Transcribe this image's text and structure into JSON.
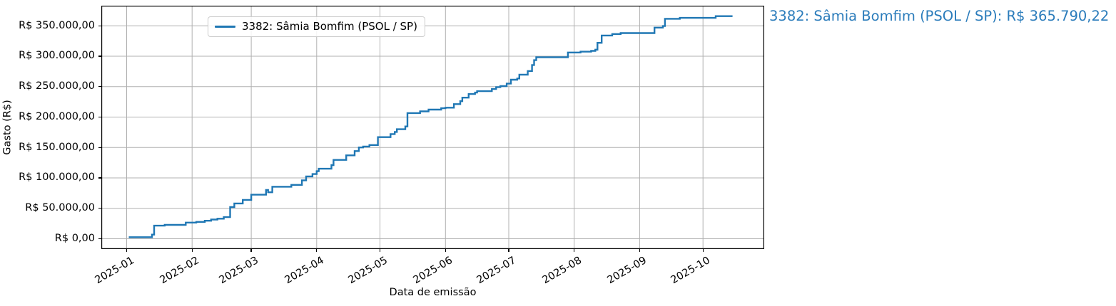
{
  "annotation": {
    "text": "3382: Sâmia Bomfim (PSOL / SP): R$ 365.790,22",
    "color": "#2b7cbb"
  },
  "chart_data": {
    "type": "line",
    "step": "post",
    "xlabel": "Data de emissão",
    "ylabel": "Gasto (R$)",
    "grid": true,
    "grid_color": "#b0b0b0",
    "spine_color": "#000000",
    "legend_position": "upper left",
    "xlim": [
      "2024-12-20",
      "2025-10-30"
    ],
    "ylim": [
      -17000,
      383000
    ],
    "x_ticks": [
      {
        "date": "2025-01-01",
        "label": "2025-01"
      },
      {
        "date": "2025-02-01",
        "label": "2025-02"
      },
      {
        "date": "2025-03-01",
        "label": "2025-03"
      },
      {
        "date": "2025-04-01",
        "label": "2025-04"
      },
      {
        "date": "2025-05-01",
        "label": "2025-05"
      },
      {
        "date": "2025-06-01",
        "label": "2025-06"
      },
      {
        "date": "2025-07-01",
        "label": "2025-07"
      },
      {
        "date": "2025-08-01",
        "label": "2025-08"
      },
      {
        "date": "2025-09-01",
        "label": "2025-09"
      },
      {
        "date": "2025-10-01",
        "label": "2025-10"
      }
    ],
    "y_ticks": [
      {
        "value": 0,
        "label": "R$ 0,00"
      },
      {
        "value": 50000,
        "label": "R$ 50.000,00"
      },
      {
        "value": 100000,
        "label": "R$ 100.000,00"
      },
      {
        "value": 150000,
        "label": "R$ 150.000,00"
      },
      {
        "value": 200000,
        "label": "R$ 200.000,00"
      },
      {
        "value": 250000,
        "label": "R$ 250.000,00"
      },
      {
        "value": 300000,
        "label": "R$ 300.000,00"
      },
      {
        "value": 350000,
        "label": "R$ 350.000,00"
      }
    ],
    "series": [
      {
        "name": "3382: Sâmia Bomfim (PSOL / SP)",
        "color": "#1f77b4",
        "final_value_label": "R$ 365.790,22",
        "points": [
          [
            "2025-01-02",
            2500
          ],
          [
            "2025-01-13",
            6700
          ],
          [
            "2025-01-14",
            21500
          ],
          [
            "2025-01-19",
            22800
          ],
          [
            "2025-01-29",
            26500
          ],
          [
            "2025-02-03",
            27700
          ],
          [
            "2025-02-07",
            29500
          ],
          [
            "2025-02-10",
            31500
          ],
          [
            "2025-02-13",
            33000
          ],
          [
            "2025-02-16",
            35500
          ],
          [
            "2025-02-19",
            52000
          ],
          [
            "2025-02-21",
            58000
          ],
          [
            "2025-02-25",
            63800
          ],
          [
            "2025-03-01",
            72300
          ],
          [
            "2025-03-08",
            80200
          ],
          [
            "2025-03-09",
            76300
          ],
          [
            "2025-03-11",
            85400
          ],
          [
            "2025-03-20",
            88500
          ],
          [
            "2025-03-25",
            96000
          ],
          [
            "2025-03-27",
            102400
          ],
          [
            "2025-03-30",
            106300
          ],
          [
            "2025-04-01",
            111000
          ],
          [
            "2025-04-02",
            115000
          ],
          [
            "2025-04-08",
            121000
          ],
          [
            "2025-04-09",
            129500
          ],
          [
            "2025-04-15",
            137000
          ],
          [
            "2025-04-19",
            144000
          ],
          [
            "2025-04-21",
            150000
          ],
          [
            "2025-04-23",
            151500
          ],
          [
            "2025-04-26",
            154000
          ],
          [
            "2025-04-30",
            167000
          ],
          [
            "2025-05-06",
            172000
          ],
          [
            "2025-05-08",
            175500
          ],
          [
            "2025-05-09",
            180000
          ],
          [
            "2025-05-13",
            184500
          ],
          [
            "2025-05-14",
            206500
          ],
          [
            "2025-05-20",
            209300
          ],
          [
            "2025-05-24",
            212200
          ],
          [
            "2025-05-30",
            214500
          ],
          [
            "2025-06-01",
            215400
          ],
          [
            "2025-06-05",
            221300
          ],
          [
            "2025-06-08",
            226000
          ],
          [
            "2025-06-09",
            231900
          ],
          [
            "2025-06-12",
            237800
          ],
          [
            "2025-06-15",
            240200
          ],
          [
            "2025-06-16",
            242500
          ],
          [
            "2025-06-23",
            246000
          ],
          [
            "2025-06-25",
            249200
          ],
          [
            "2025-06-27",
            250800
          ],
          [
            "2025-06-30",
            255100
          ],
          [
            "2025-07-02",
            261400
          ],
          [
            "2025-07-05",
            263400
          ],
          [
            "2025-07-06",
            269700
          ],
          [
            "2025-07-10",
            275600
          ],
          [
            "2025-07-12",
            285500
          ],
          [
            "2025-07-13",
            293400
          ],
          [
            "2025-07-14",
            298300
          ],
          [
            "2025-07-29",
            306000
          ],
          [
            "2025-08-04",
            307500
          ],
          [
            "2025-08-09",
            308700
          ],
          [
            "2025-08-11",
            310700
          ],
          [
            "2025-08-12",
            322000
          ],
          [
            "2025-08-14",
            334000
          ],
          [
            "2025-08-19",
            336400
          ],
          [
            "2025-08-23",
            338000
          ],
          [
            "2025-09-08",
            347000
          ],
          [
            "2025-09-12",
            349500
          ],
          [
            "2025-09-13",
            361500
          ],
          [
            "2025-09-20",
            363000
          ],
          [
            "2025-10-07",
            365790.22
          ],
          [
            "2025-10-15",
            365790.22
          ]
        ]
      }
    ]
  }
}
